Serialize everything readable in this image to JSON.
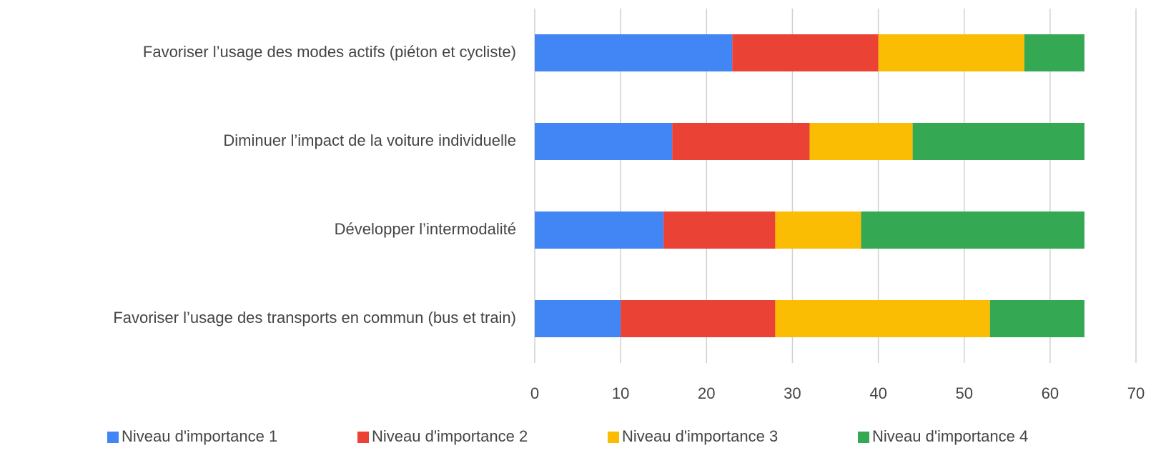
{
  "chart_data": {
    "type": "stacked_barh",
    "categories": [
      "Favoriser l’usage des modes actifs (piéton et cycliste)",
      "Diminuer l’impact de la voiture individuelle",
      "Développer l’intermodalité",
      "Favoriser l’usage des transports en commun (bus et train)"
    ],
    "series": [
      {
        "name": "Niveau d'importance 1",
        "color": "#4285f4",
        "values": [
          23,
          16,
          15,
          10
        ]
      },
      {
        "name": "Niveau d'importance 2",
        "color": "#ea4335",
        "values": [
          17,
          16,
          13,
          18
        ]
      },
      {
        "name": "Niveau d'importance 3",
        "color": "#fbbc04",
        "values": [
          17,
          12,
          10,
          25
        ]
      },
      {
        "name": "Niveau d'importance 4",
        "color": "#34a853",
        "values": [
          7,
          20,
          26,
          11
        ]
      }
    ],
    "xlim": [
      0,
      70
    ],
    "xticks": [
      0,
      10,
      20,
      30,
      40,
      50,
      60,
      70
    ],
    "grid": true,
    "legend": "bottom"
  }
}
